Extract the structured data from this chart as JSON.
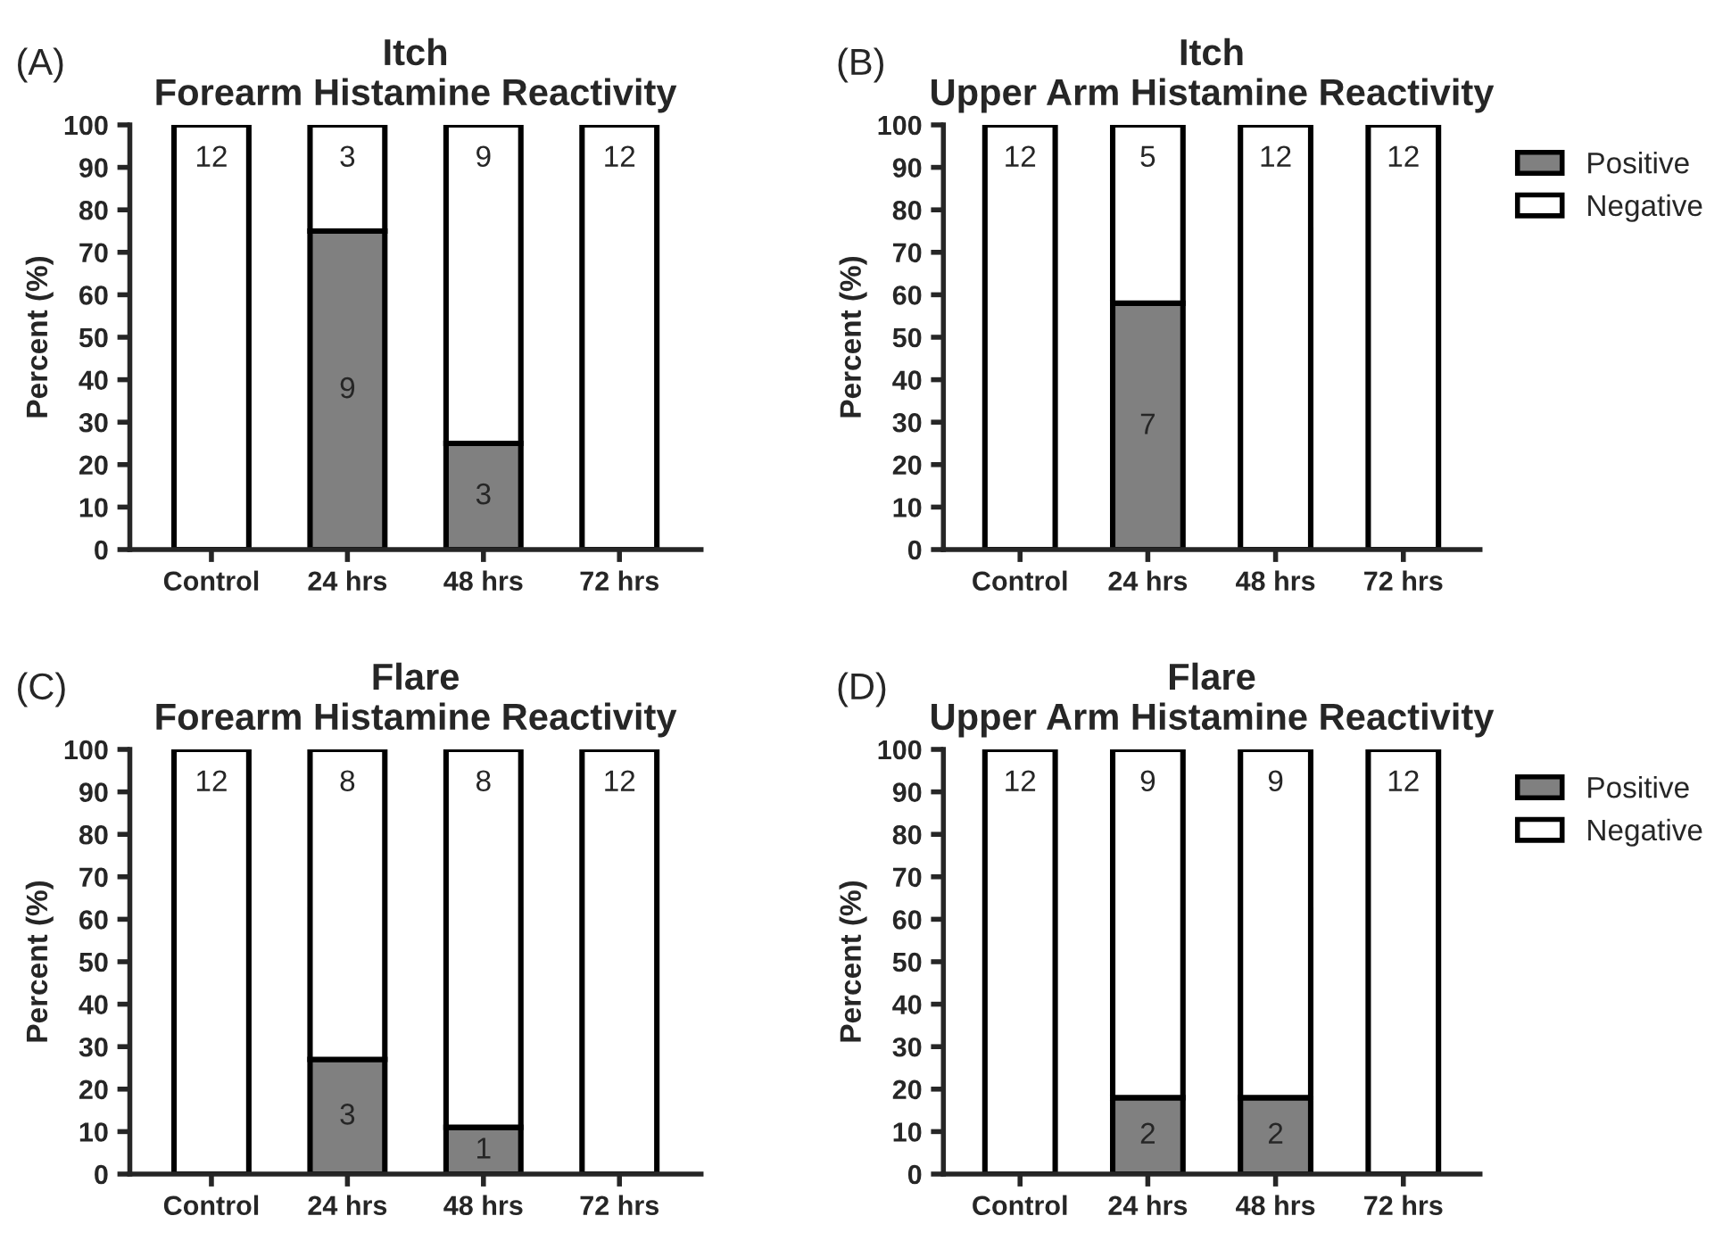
{
  "chart_data": [
    {
      "type": "bar",
      "title": "Itch\nForearm Histamine Reactivity",
      "ylabel": "Percent (%)",
      "categories": [
        "Control",
        "24 hrs",
        "48 hrs",
        "72 hrs"
      ],
      "stacked": true,
      "ylim": [
        0,
        100
      ],
      "yticks": [
        0,
        10,
        20,
        30,
        40,
        50,
        60,
        70,
        80,
        90,
        100
      ],
      "grid": false,
      "legend": false,
      "annotations": [
        "(A)",
        "12",
        "9",
        "3",
        "3",
        "9",
        "12"
      ],
      "series": [
        {
          "color": "#808080",
          "values": [
            0,
            75,
            25,
            0
          ]
        },
        {
          "color": "#ffffff",
          "values": [
            100,
            25,
            75,
            100
          ]
        }
      ]
    },
    {
      "type": "bar",
      "title": "Itch\nUpper Arm Histamine Reactivity",
      "ylabel": "Percent (%)",
      "categories": [
        "Control",
        "24 hrs",
        "48 hrs",
        "72 hrs"
      ],
      "stacked": true,
      "ylim": [
        0,
        100
      ],
      "yticks": [
        0,
        10,
        20,
        30,
        40,
        50,
        60,
        70,
        80,
        90,
        100
      ],
      "grid": false,
      "legend": "right",
      "annotations": [
        "(B)",
        "12",
        "7",
        "5",
        "12",
        "12"
      ],
      "series": [
        {
          "name": "Positive",
          "color": "#808080",
          "values": [
            0,
            58,
            0,
            0
          ]
        },
        {
          "name": "Negative",
          "color": "#ffffff",
          "values": [
            100,
            42,
            100,
            100
          ]
        }
      ]
    },
    {
      "type": "bar",
      "title": "Flare\nForearm Histamine Reactivity",
      "ylabel": "Percent (%)",
      "categories": [
        "Control",
        "24 hrs",
        "48 hrs",
        "72 hrs"
      ],
      "stacked": true,
      "ylim": [
        0,
        100
      ],
      "yticks": [
        0,
        10,
        20,
        30,
        40,
        50,
        60,
        70,
        80,
        90,
        100
      ],
      "grid": false,
      "legend": false,
      "annotations": [
        "(C)",
        "12",
        "3",
        "8",
        "1",
        "8",
        "12"
      ],
      "series": [
        {
          "color": "#808080",
          "values": [
            0,
            27,
            11,
            0
          ]
        },
        {
          "color": "#ffffff",
          "values": [
            100,
            73,
            89,
            100
          ]
        }
      ]
    },
    {
      "type": "bar",
      "title": "Flare\nUpper Arm Histamine Reactivity",
      "ylabel": "Percent (%)",
      "categories": [
        "Control",
        "24 hrs",
        "48 hrs",
        "72 hrs"
      ],
      "stacked": true,
      "ylim": [
        0,
        100
      ],
      "yticks": [
        0,
        10,
        20,
        30,
        40,
        50,
        60,
        70,
        80,
        90,
        100
      ],
      "grid": false,
      "legend": "right",
      "annotations": [
        "(D)",
        "12",
        "2",
        "9",
        "2",
        "9",
        "12"
      ],
      "series": [
        {
          "name": "Positive",
          "color": "#808080",
          "values": [
            0,
            18,
            18,
            0
          ]
        },
        {
          "name": "Negative",
          "color": "#ffffff",
          "values": [
            100,
            82,
            82,
            100
          ]
        }
      ]
    }
  ]
}
